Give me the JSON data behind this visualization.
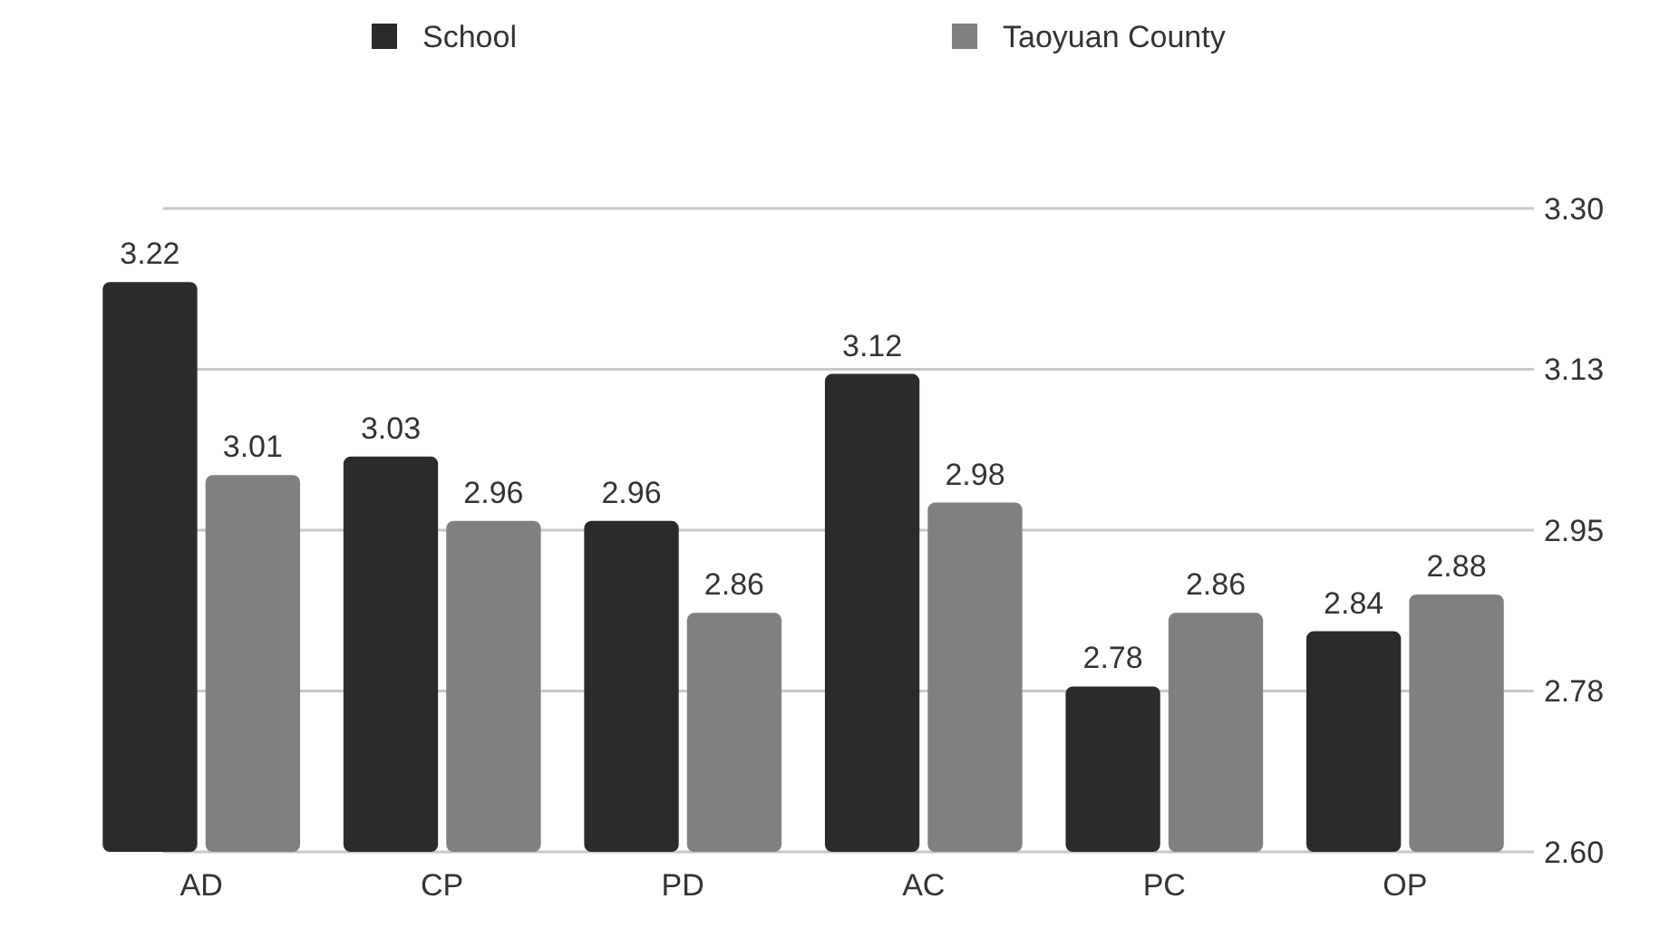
{
  "chart_data": {
    "type": "bar",
    "categories": [
      "AD",
      "CP",
      "PD",
      "AC",
      "PC",
      "OP"
    ],
    "series": [
      {
        "name": "School",
        "color": "#2b2b2b",
        "values": [
          3.22,
          3.03,
          2.96,
          3.12,
          2.78,
          2.84
        ]
      },
      {
        "name": "Taoyuan County",
        "color": "#808080",
        "values": [
          3.01,
          2.96,
          2.86,
          2.98,
          2.86,
          2.88
        ]
      }
    ],
    "ylim": [
      2.6,
      3.3
    ],
    "yticks": [
      {
        "value": 2.6,
        "label": "2.60"
      },
      {
        "value": 2.775,
        "label": "2.78"
      },
      {
        "value": 2.95,
        "label": "2.95"
      },
      {
        "value": 3.125,
        "label": "3.13"
      },
      {
        "value": 3.3,
        "label": "3.30"
      }
    ],
    "grid": true,
    "legend": "top",
    "data_labels": true
  }
}
